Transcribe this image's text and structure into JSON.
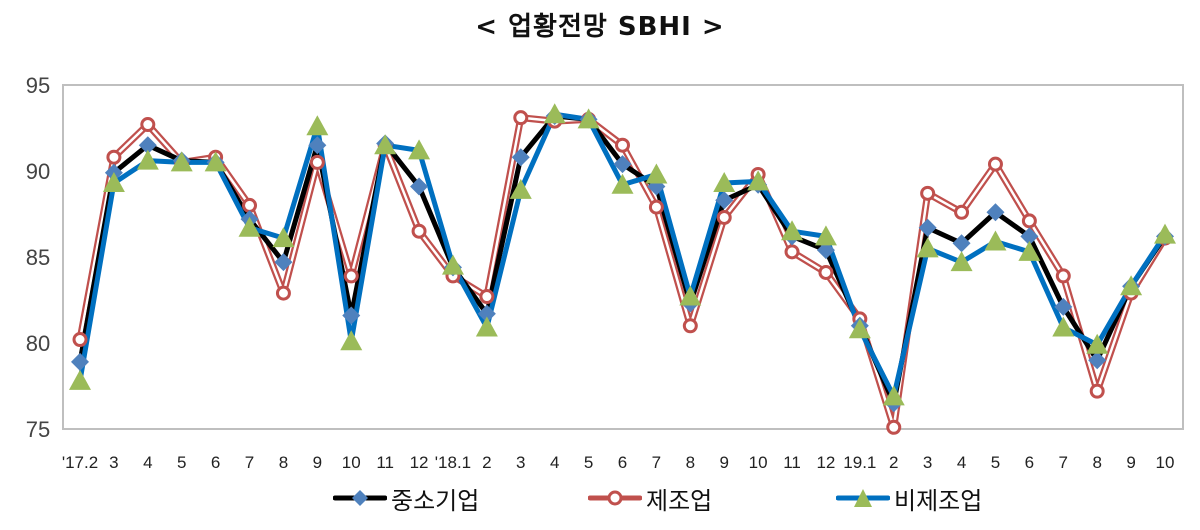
{
  "title": "< 업황전망 SBHI >",
  "legend": [
    {
      "label": "중소기업",
      "line_color": "#000000",
      "marker_color": "#4F81BD",
      "marker": "diamond"
    },
    {
      "label": "제조업",
      "line_color": "#C0504D",
      "marker_color": "#FFFFFF",
      "marker": "circle"
    },
    {
      "label": "비제조업",
      "line_color": "#0070C0",
      "marker_color": "#9BBB59",
      "marker": "triangle"
    }
  ],
  "chart_data": {
    "type": "line",
    "title": "< 업황전망 SBHI >",
    "xlabel": "",
    "ylabel": "",
    "ylim": [
      75,
      95
    ],
    "yticks": [
      75,
      80,
      85,
      90,
      95
    ],
    "grid": false,
    "legend_position": "bottom",
    "categories": [
      "'17.2",
      "3",
      "4",
      "5",
      "6",
      "7",
      "8",
      "9",
      "10",
      "11",
      "12",
      "'18.1",
      "2",
      "3",
      "4",
      "5",
      "6",
      "7",
      "8",
      "9",
      "10",
      "11",
      "12",
      "19.1",
      "2",
      "3",
      "4",
      "5",
      "6",
      "7",
      "8",
      "9",
      "10"
    ],
    "series": [
      {
        "name": "중소기업",
        "color": "#000000",
        "marker": "diamond",
        "marker_color": "#4F81BD",
        "values": [
          78.9,
          89.9,
          91.5,
          90.6,
          90.5,
          87.2,
          84.7,
          91.5,
          81.6,
          91.6,
          89.1,
          84.4,
          81.7,
          90.8,
          93.2,
          93.0,
          90.4,
          89.1,
          82.3,
          88.3,
          89.2,
          86.2,
          85.4,
          81.0,
          76.5,
          86.7,
          85.8,
          87.6,
          86.2,
          82.1,
          79.0,
          83.3,
          86.2
        ]
      },
      {
        "name": "제조업",
        "color": "#C0504D",
        "marker": "circle",
        "marker_color": "#FFFFFF",
        "values": [
          80.2,
          90.8,
          92.7,
          90.5,
          90.8,
          88.0,
          82.9,
          90.5,
          83.9,
          91.5,
          86.5,
          83.9,
          82.7,
          93.1,
          92.9,
          93.0,
          91.5,
          87.9,
          81.0,
          87.3,
          89.8,
          85.3,
          84.1,
          81.4,
          75.1,
          88.7,
          87.6,
          90.4,
          87.1,
          83.9,
          77.2,
          82.9,
          86.1
        ]
      },
      {
        "name": "비제조업",
        "color": "#0070C0",
        "marker": "triangle",
        "marker_color": "#9BBB59",
        "values": [
          77.8,
          89.3,
          90.6,
          90.5,
          90.5,
          86.7,
          86.1,
          92.6,
          80.1,
          91.5,
          91.2,
          84.5,
          80.9,
          88.9,
          93.3,
          93.0,
          89.2,
          89.8,
          82.7,
          89.3,
          89.4,
          86.5,
          86.2,
          80.8,
          76.9,
          85.5,
          84.7,
          85.9,
          85.3,
          80.9,
          79.9,
          83.3,
          86.3
        ]
      }
    ]
  }
}
